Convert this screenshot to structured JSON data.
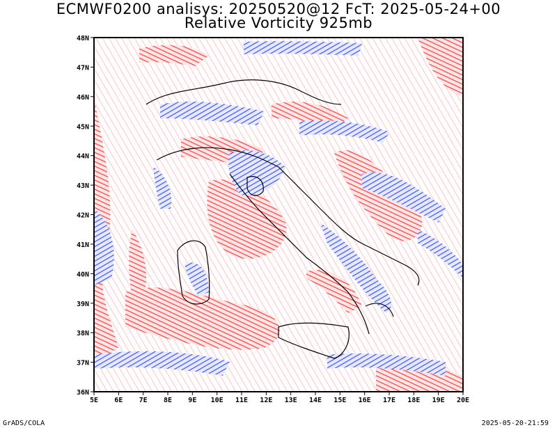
{
  "title_line1": "ECMWF0200 analisys: 20250520@12 FcT: 2025-05-24+00",
  "title_line2": "Relative Vorticity 925mb",
  "lat_labels": [
    "48N",
    "47N",
    "46N",
    "45N",
    "44N",
    "43N",
    "42N",
    "41N",
    "40N",
    "39N",
    "38N",
    "37N",
    "36N"
  ],
  "lon_labels": [
    "5E",
    "6E",
    "7E",
    "8E",
    "9E",
    "10E",
    "11E",
    "12E",
    "13E",
    "14E",
    "15E",
    "16E",
    "17E",
    "18E",
    "19E",
    "20E"
  ],
  "footer_left": "GrADS/COLA",
  "footer_right": "2025-05-20-21:59",
  "colors": {
    "positive": "#ff3a3a",
    "negative": "#3a52ff",
    "coast": "#000000",
    "frame": "#000000"
  },
  "map_extent": {
    "lon": [
      5,
      20
    ],
    "lat": [
      36,
      48
    ]
  }
}
